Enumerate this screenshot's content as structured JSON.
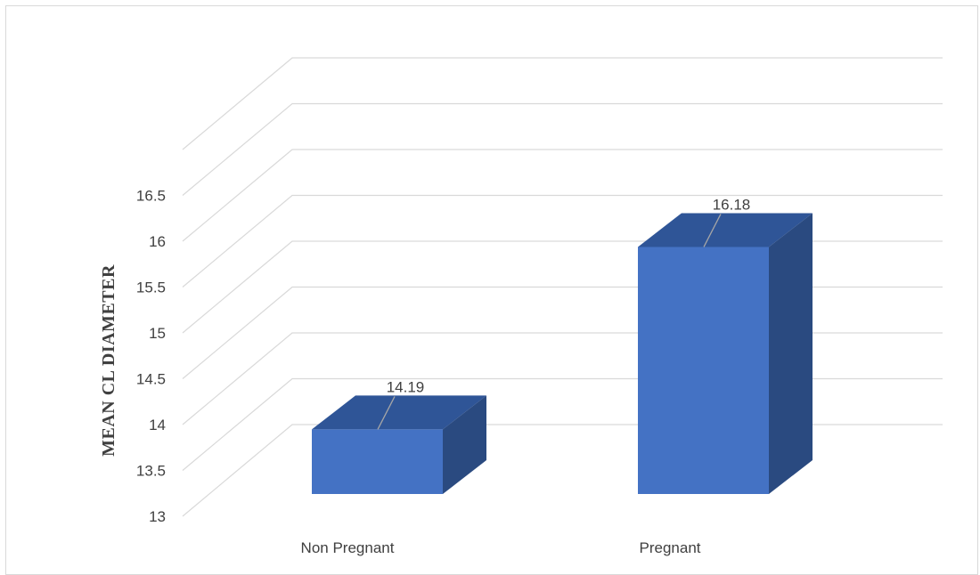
{
  "chart_data": {
    "type": "bar",
    "categories": [
      "Non Pregnant",
      "Pregnant"
    ],
    "values": [
      14.19,
      16.18
    ],
    "data_labels": [
      "14.19",
      "16.18"
    ],
    "title": "",
    "xlabel": "",
    "ylabel": "MEAN CL DIAMETER",
    "ylim": [
      13,
      16.5
    ],
    "y_ticks": [
      "13",
      "13.5",
      "14",
      "14.5",
      "15",
      "15.5",
      "16",
      "16.5"
    ],
    "grid": true,
    "style": "3d-column",
    "colors": {
      "front": "#4472c4",
      "top": "#2f5597",
      "side": "#2a4a80",
      "grid": "#d9d9d9",
      "text": "#404040"
    }
  }
}
